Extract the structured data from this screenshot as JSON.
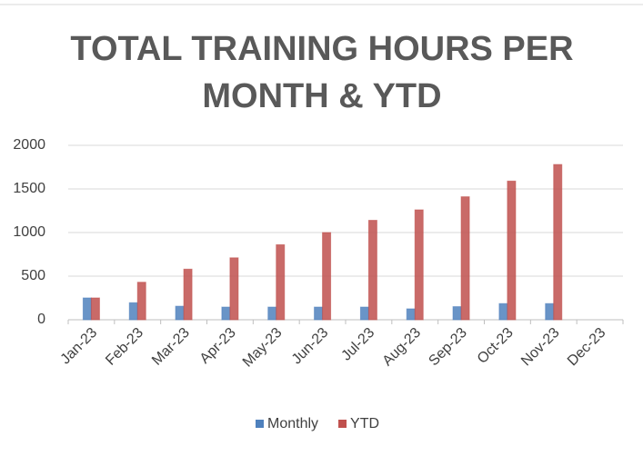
{
  "chart_data": {
    "type": "bar",
    "title": "TOTAL TRAINING HOURS PER MONTH & YTD",
    "categories": [
      "Jan-23",
      "Feb-23",
      "Mar-23",
      "Apr-23",
      "May-23",
      "Jun-23",
      "Jul-23",
      "Aug-23",
      "Sep-23",
      "Oct-23",
      "Nov-23",
      "Dec-23"
    ],
    "series": [
      {
        "name": "Monthly",
        "color": "#4f81bd",
        "values": [
          250,
          195,
          155,
          145,
          145,
          145,
          145,
          125,
          150,
          185,
          185,
          null
        ]
      },
      {
        "name": "YTD",
        "color": "#c0504d",
        "values": [
          250,
          430,
          580,
          710,
          860,
          1000,
          1140,
          1260,
          1410,
          1590,
          1780,
          null
        ]
      }
    ],
    "ylim": [
      0,
      2000
    ],
    "yticks": [
      0,
      500,
      1000,
      1500,
      2000
    ],
    "grid": true,
    "legend": "bottom"
  }
}
